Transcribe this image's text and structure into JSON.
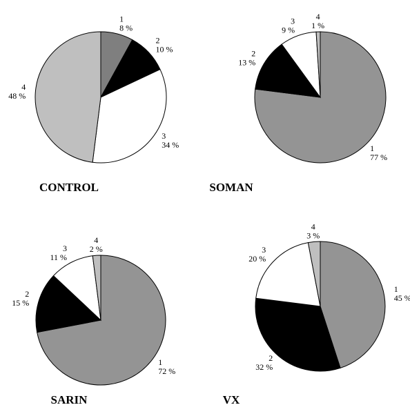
{
  "chart_data": [
    {
      "type": "pie",
      "title": "CONTROL",
      "slices": [
        {
          "label": "1",
          "value": 8,
          "pct_text": "8 %",
          "color": "#7f7f7f"
        },
        {
          "label": "2",
          "value": 10,
          "pct_text": "10 %",
          "color": "#000000"
        },
        {
          "label": "3",
          "value": 34,
          "pct_text": "34 %",
          "color": "#ffffff"
        },
        {
          "label": "4",
          "value": 48,
          "pct_text": "48 %",
          "color": "#bfbfbf"
        }
      ]
    },
    {
      "type": "pie",
      "title": "SOMAN",
      "slices": [
        {
          "label": "1",
          "value": 77,
          "pct_text": "77 %",
          "color": "#949494"
        },
        {
          "label": "2",
          "value": 13,
          "pct_text": "13 %",
          "color": "#000000"
        },
        {
          "label": "3",
          "value": 9,
          "pct_text": "9 %",
          "color": "#ffffff"
        },
        {
          "label": "4",
          "value": 1,
          "pct_text": "1 %",
          "color": "#bfbfbf"
        }
      ]
    },
    {
      "type": "pie",
      "title": "SARIN",
      "slices": [
        {
          "label": "1",
          "value": 72,
          "pct_text": "72 %",
          "color": "#949494"
        },
        {
          "label": "2",
          "value": 15,
          "pct_text": "15 %",
          "color": "#000000"
        },
        {
          "label": "3",
          "value": 11,
          "pct_text": "11 %",
          "color": "#ffffff"
        },
        {
          "label": "4",
          "value": 2,
          "pct_text": "2 %",
          "color": "#bfbfbf"
        }
      ]
    },
    {
      "type": "pie",
      "title": "VX",
      "slices": [
        {
          "label": "1",
          "value": 45,
          "pct_text": "45 %",
          "color": "#949494"
        },
        {
          "label": "2",
          "value": 32,
          "pct_text": "32 %",
          "color": "#000000"
        },
        {
          "label": "3",
          "value": 20,
          "pct_text": "20 %",
          "color": "#ffffff"
        },
        {
          "label": "4",
          "value": 3,
          "pct_text": "3 %",
          "color": "#bfbfbf"
        }
      ]
    }
  ]
}
